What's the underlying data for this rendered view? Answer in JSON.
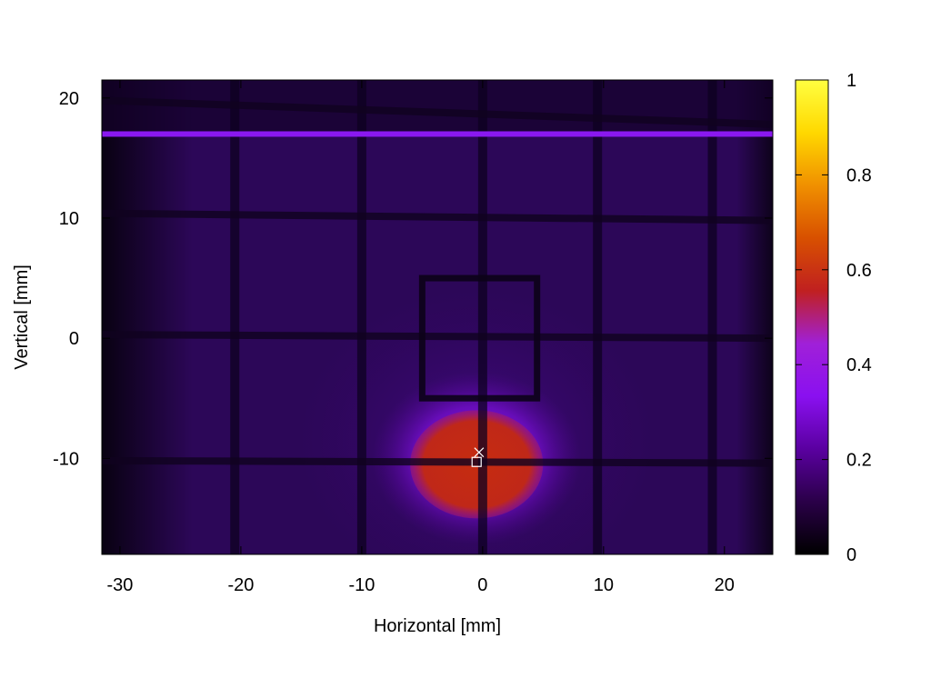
{
  "chart_data": {
    "type": "heatmap",
    "title": "",
    "xlabel": "Horizontal [mm]",
    "ylabel": "Vertical [mm]",
    "xlim": [
      -31.5,
      24
    ],
    "ylim": [
      -18,
      21.5
    ],
    "xticks": [
      -30,
      -20,
      -10,
      0,
      10,
      20
    ],
    "xtick_labels": [
      "-30",
      "-20",
      "-10",
      "0",
      "10",
      "20"
    ],
    "yticks": [
      20,
      10,
      0,
      -10
    ],
    "ytick_labels": [
      "20",
      "10",
      "0",
      "-10"
    ],
    "colorbar": {
      "range": [
        0,
        1
      ],
      "ticks": [
        0,
        0.2,
        0.4,
        0.6,
        0.8,
        1
      ],
      "tick_labels": [
        "0",
        "0.2",
        "0.4",
        "0.6",
        "0.8",
        "1"
      ],
      "colormap": [
        "#000000",
        "#2a0048",
        "#5a00a0",
        "#8a10f0",
        "#a020d8",
        "#c02020",
        "#d85000",
        "#f09000",
        "#ffd800",
        "#ffff40"
      ]
    },
    "beam_spot": {
      "center": [
        -0.5,
        -10
      ],
      "peak_value": 0.55,
      "extent_x": [
        -6,
        5
      ],
      "extent_y": [
        -15,
        -6
      ]
    },
    "background_level": 0.1,
    "bright_line": {
      "y": 17,
      "value": 0.3
    },
    "frame": {
      "x": [
        -5,
        4.5
      ],
      "y": [
        -5,
        5
      ]
    },
    "markers": [
      {
        "symbol": "cross",
        "x": -0.3,
        "y": -9.5,
        "color": "#ffffff"
      },
      {
        "symbol": "square",
        "x": -0.5,
        "y": -10.3,
        "color": "#ffffff"
      }
    ],
    "grid": false
  }
}
